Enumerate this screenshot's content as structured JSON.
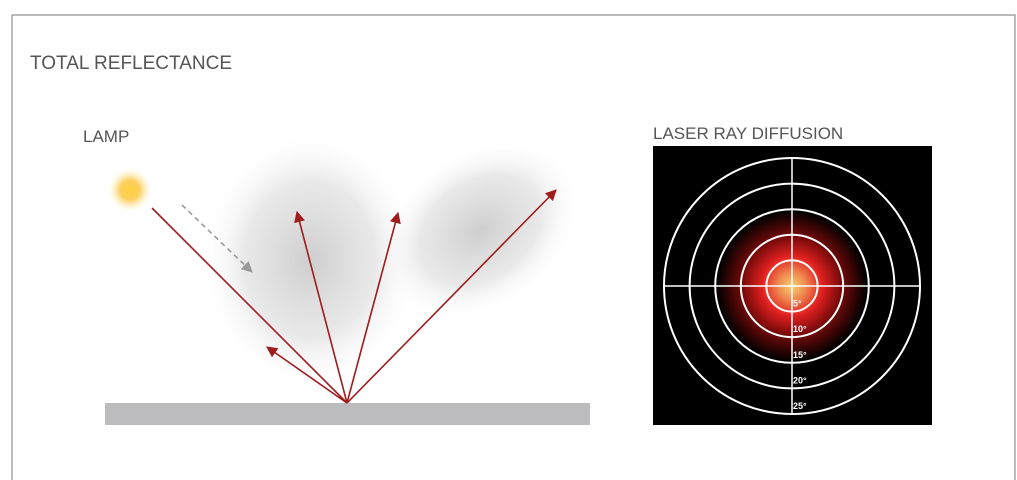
{
  "title": "TOTAL REFLECTANCE",
  "lamp": {
    "label": "LAMP"
  },
  "laser_diffusion": {
    "title": "LASER RAY DIFFUSION",
    "ring_labels": [
      "5°",
      "10°",
      "15°",
      "20°",
      "25°"
    ]
  }
}
